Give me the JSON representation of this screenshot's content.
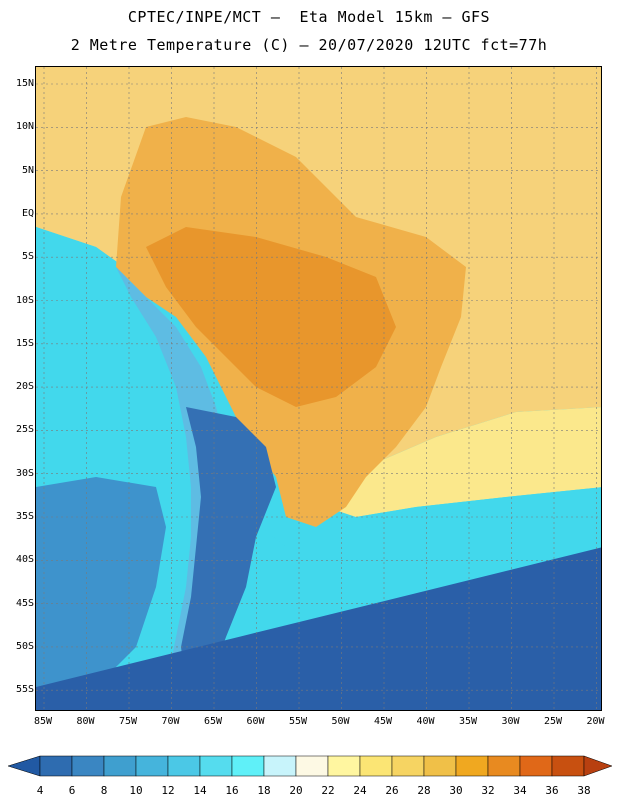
{
  "header": {
    "line1": "CPTEC/INPE/MCT –  Eta Model 15km – GFS",
    "line2": "2 Metre Temperature (C) – 20/07/2020 12UTC fct=77h"
  },
  "map": {
    "lat_labels": [
      "15N",
      "10N",
      "5N",
      "EQ",
      "5S",
      "10S",
      "15S",
      "20S",
      "25S",
      "30S",
      "35S",
      "40S",
      "45S",
      "50S",
      "55S"
    ],
    "lon_labels": [
      "85W",
      "80W",
      "75W",
      "70W",
      "65W",
      "60W",
      "55W",
      "50W",
      "45W",
      "40W",
      "35W",
      "30W",
      "25W",
      "20W"
    ],
    "colors": {
      "deep_ocean": "#2a5fa8",
      "cool_ocean": "#3e93cc",
      "cyan_ocean": "#42d8ec",
      "warm_ocean": "#fbe88c",
      "tropical_ocean": "#f6d27a",
      "land_hot": "#e8962c",
      "land_warm": "#f0b14a",
      "andes": "#5ebce3",
      "patagonia": "#3470b4"
    }
  },
  "colorbar": {
    "labels": [
      "4",
      "6",
      "8",
      "10",
      "12",
      "14",
      "16",
      "18",
      "20",
      "22",
      "24",
      "26",
      "28",
      "30",
      "32",
      "34",
      "36",
      "38"
    ],
    "colors": [
      "#2159a3",
      "#2e6cb0",
      "#3a86c2",
      "#3f9fcf",
      "#45b4dc",
      "#4bc8e6",
      "#55dcee",
      "#5ff0f8",
      "#c8f4fb",
      "#fdf9e4",
      "#fff6a0",
      "#fbe574",
      "#f6d462",
      "#f0c048",
      "#f0a820",
      "#e88a20",
      "#e06818",
      "#c85010",
      "#b84010"
    ]
  }
}
